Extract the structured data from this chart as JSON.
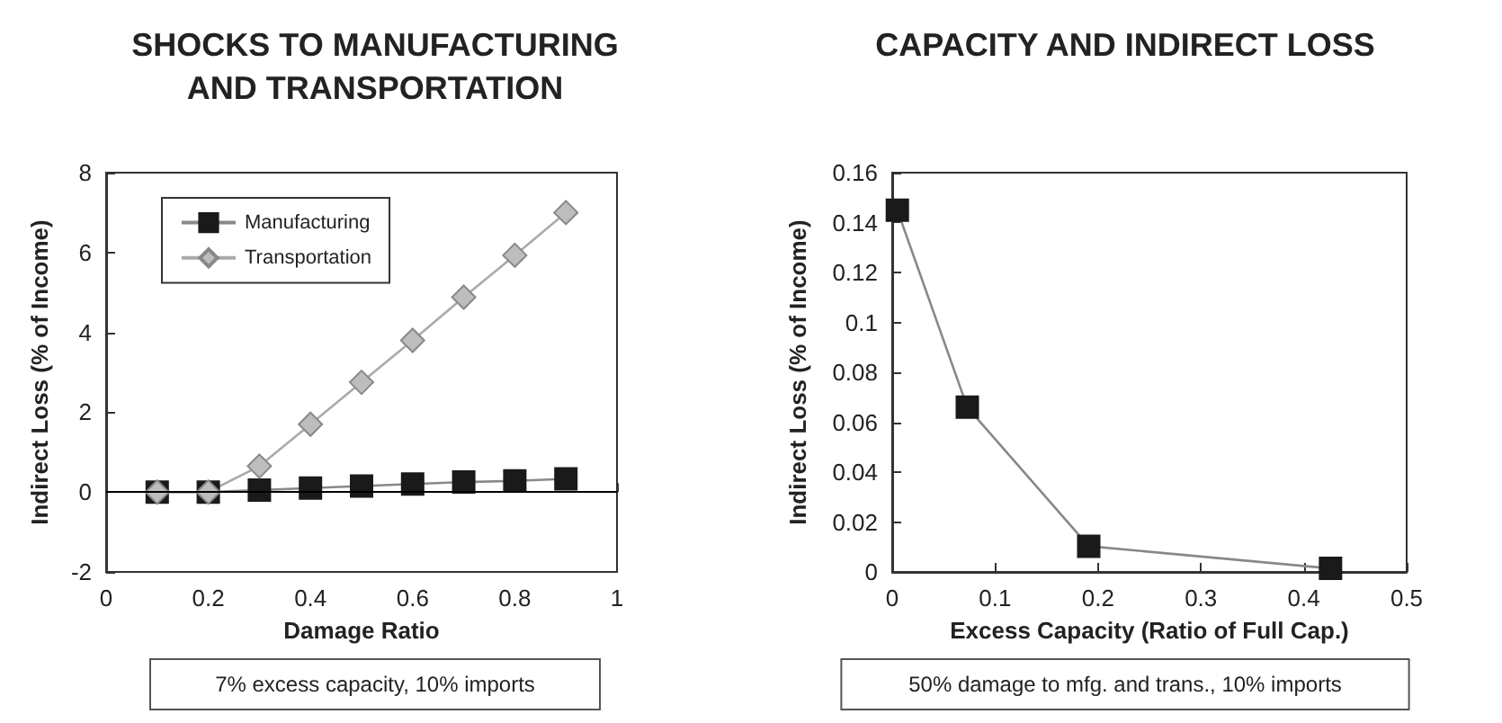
{
  "chart_data": [
    {
      "type": "line",
      "title": "SHOCKS TO MANUFACTURING\nAND TRANSPORTATION",
      "xlabel": "Damage Ratio",
      "ylabel": "Indirect Loss (% of Income)",
      "x": [
        0.1,
        0.2,
        0.3,
        0.4,
        0.5,
        0.6,
        0.7,
        0.8,
        0.9
      ],
      "series": [
        {
          "name": "Manufacturing",
          "color": "#1a1a1a",
          "marker": "square",
          "values": [
            0,
            0,
            0.05,
            0.1,
            0.15,
            0.2,
            0.25,
            0.28,
            0.33
          ]
        },
        {
          "name": "Transportation",
          "color": "#bdbdbd",
          "marker": "diamond",
          "values": [
            0,
            0,
            0.65,
            1.7,
            2.75,
            3.8,
            4.88,
            5.93,
            7.0
          ]
        }
      ],
      "xlim": [
        0,
        1
      ],
      "xticks": [
        0,
        0.2,
        0.4,
        0.6,
        0.8,
        1
      ],
      "ylim": [
        -2,
        8
      ],
      "yticks": [
        -2,
        0,
        2,
        4,
        6,
        8
      ],
      "ref_lines": [
        {
          "axis": "y",
          "value": 0,
          "color": "#000000"
        }
      ],
      "legend": "top left",
      "grid": false,
      "annotations": [
        "7% excess capacity, 10% imports"
      ]
    },
    {
      "type": "line",
      "title": "CAPACITY AND INDIRECT LOSS",
      "xlabel": "Excess Capacity (Ratio of Full Cap.)",
      "ylabel": "Indirect Loss (% of Income)",
      "x": [
        0.005,
        0.073,
        0.191,
        0.426
      ],
      "series": [
        {
          "color": "#1a1a1a",
          "marker": "square",
          "values": [
            0.145,
            0.066,
            0.0103,
            0.0014
          ]
        }
      ],
      "xlim": [
        0,
        0.5
      ],
      "xticks": [
        0,
        0.1,
        0.2,
        0.3,
        0.4,
        0.5
      ],
      "ylim": [
        0,
        0.16
      ],
      "yticks": [
        0,
        0.02,
        0.04,
        0.06,
        0.08,
        0.1,
        0.12,
        0.14,
        0.16
      ],
      "legend": false,
      "grid": false,
      "annotations": [
        "50% damage to mfg. and trans., 10% imports"
      ]
    }
  ]
}
